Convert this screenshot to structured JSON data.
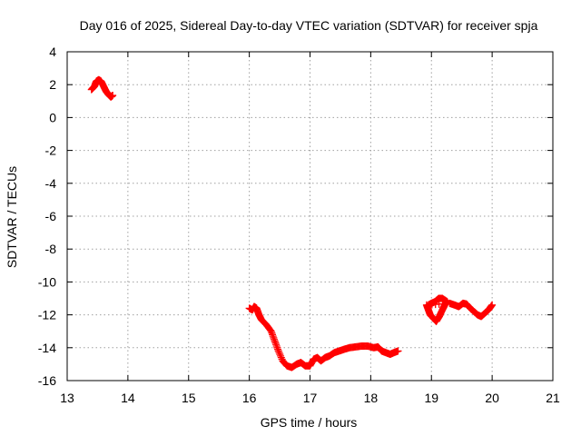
{
  "chart_data": {
    "type": "scatter",
    "title": "Day 016 of 2025, Sidereal Day-to-day VTEC variation (SDTVAR) for receiver spja",
    "xlabel": "GPS time / hours",
    "ylabel": "SDTVAR / TECUs",
    "xlim": [
      13,
      21
    ],
    "ylim": [
      -16,
      4
    ],
    "xticks": [
      13,
      14,
      15,
      16,
      17,
      18,
      19,
      20,
      21
    ],
    "yticks": [
      4,
      2,
      0,
      -2,
      -4,
      -6,
      -8,
      -10,
      -12,
      -14,
      -16
    ],
    "grid": true,
    "marker": "+",
    "series": [
      {
        "name": "SDTVAR",
        "color": "#ff0000",
        "segments": [
          [
            [
              13.4,
              1.7
            ],
            [
              13.45,
              1.9
            ],
            [
              13.48,
              2.2
            ],
            [
              13.52,
              2.3
            ],
            [
              13.56,
              2.2
            ],
            [
              13.6,
              1.9
            ],
            [
              13.64,
              1.6
            ],
            [
              13.68,
              1.4
            ],
            [
              13.72,
              1.25
            ],
            [
              13.75,
              1.35
            ]
          ],
          [
            [
              16.0,
              -11.6
            ],
            [
              16.05,
              -11.7
            ],
            [
              16.08,
              -11.5
            ],
            [
              16.12,
              -11.6
            ],
            [
              16.16,
              -12.0
            ],
            [
              16.2,
              -12.3
            ],
            [
              16.28,
              -12.6
            ],
            [
              16.36,
              -13.0
            ],
            [
              16.42,
              -13.6
            ],
            [
              16.48,
              -14.2
            ],
            [
              16.55,
              -14.8
            ],
            [
              16.62,
              -15.1
            ],
            [
              16.7,
              -15.2
            ],
            [
              16.78,
              -15.0
            ],
            [
              16.85,
              -14.9
            ],
            [
              16.92,
              -15.1
            ],
            [
              17.0,
              -15.1
            ],
            [
              17.06,
              -14.7
            ],
            [
              17.12,
              -14.6
            ],
            [
              17.18,
              -14.8
            ],
            [
              17.25,
              -14.6
            ],
            [
              17.32,
              -14.5
            ],
            [
              17.4,
              -14.3
            ],
            [
              17.48,
              -14.2
            ],
            [
              17.56,
              -14.1
            ],
            [
              17.65,
              -14.0
            ],
            [
              17.75,
              -13.95
            ],
            [
              17.85,
              -13.9
            ],
            [
              17.95,
              -13.9
            ],
            [
              18.05,
              -14.0
            ],
            [
              18.12,
              -13.95
            ],
            [
              18.18,
              -14.2
            ],
            [
              18.25,
              -14.3
            ],
            [
              18.32,
              -14.4
            ],
            [
              18.38,
              -14.3
            ],
            [
              18.45,
              -14.2
            ]
          ],
          [
            [
              18.92,
              -11.4
            ],
            [
              18.95,
              -11.7
            ],
            [
              18.98,
              -12.0
            ],
            [
              19.03,
              -12.2
            ],
            [
              19.08,
              -12.4
            ],
            [
              19.13,
              -12.1
            ],
            [
              19.18,
              -11.7
            ],
            [
              19.22,
              -11.4
            ],
            [
              19.26,
              -11.2
            ],
            [
              19.18,
              -11.0
            ],
            [
              19.12,
              -11.0
            ],
            [
              19.06,
              -11.2
            ],
            [
              19.0,
              -11.3
            ],
            [
              18.95,
              -11.4
            ],
            [
              19.3,
              -11.3
            ],
            [
              19.38,
              -11.4
            ],
            [
              19.45,
              -11.5
            ],
            [
              19.52,
              -11.3
            ],
            [
              19.58,
              -11.35
            ],
            [
              19.64,
              -11.6
            ],
            [
              19.7,
              -11.8
            ],
            [
              19.76,
              -12.0
            ],
            [
              19.82,
              -12.1
            ],
            [
              19.88,
              -11.9
            ],
            [
              19.94,
              -11.7
            ],
            [
              20.0,
              -11.4
            ]
          ]
        ]
      }
    ]
  }
}
